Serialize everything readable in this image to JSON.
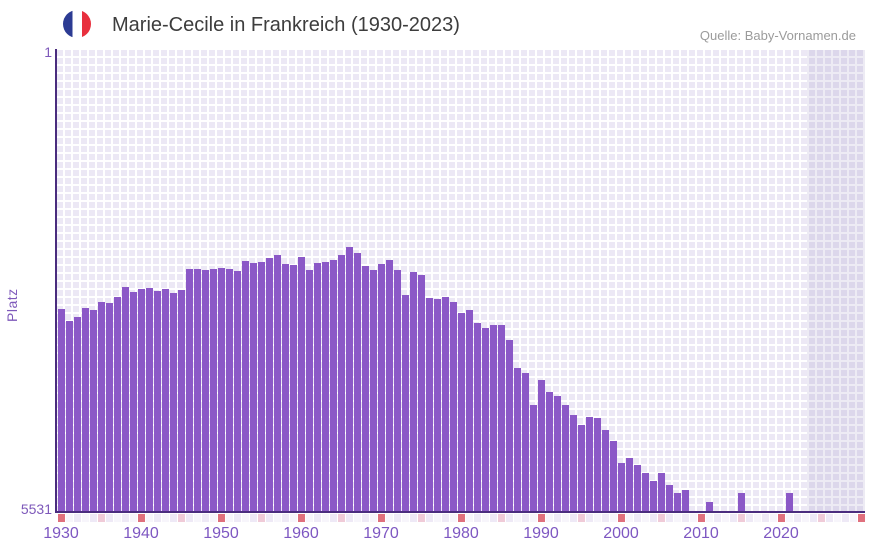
{
  "header": {
    "title": "Marie-Cecile in Frankreich (1930-2023)",
    "source": "Quelle: Baby-Vornamen.de",
    "flag_icon": "france-flag-icon"
  },
  "axes": {
    "ylabel": "Platz",
    "y_top_label": "1",
    "y_bottom_label": "5531"
  },
  "chart_data": {
    "type": "bar",
    "title": "Marie-Cecile in Frankreich (1930-2023)",
    "xlabel": "",
    "ylabel": "Platz",
    "legend_position": "none",
    "grid": true,
    "y_axis": {
      "min": 1,
      "max": 5531,
      "inverted": true,
      "tick_labels": [
        "1",
        "5531"
      ]
    },
    "x_axis": {
      "range": [
        1930,
        2030
      ],
      "tick_years": [
        1930,
        1940,
        1950,
        1960,
        1970,
        1980,
        1990,
        2000,
        2010,
        2020
      ],
      "decade_marker_note": "red squares under every decade year, pink squares under every half-decade year, strip runs 1930-2030",
      "future_band_years": [
        2024,
        2030
      ]
    },
    "colors": {
      "bar": "#8b58c7",
      "axis_line": "#4a2c7e",
      "tick_text": "#7e57c2",
      "title_text": "#3d3d3d",
      "source_text": "#9b9b9b",
      "decade_marker": "#e0707d",
      "halfdecade_marker": "#f0cbd8",
      "strip_even": "#eee9f6",
      "strip_odd": "#f7f5fb",
      "plot_cell": "#ece8f5",
      "future_band": "rgba(116,98,170,0.13)"
    },
    "years": [
      1930,
      1931,
      1932,
      1933,
      1934,
      1935,
      1936,
      1937,
      1938,
      1939,
      1940,
      1941,
      1942,
      1943,
      1944,
      1945,
      1946,
      1947,
      1948,
      1949,
      1950,
      1951,
      1952,
      1953,
      1954,
      1955,
      1956,
      1957,
      1958,
      1959,
      1960,
      1961,
      1962,
      1963,
      1964,
      1965,
      1966,
      1967,
      1968,
      1969,
      1970,
      1971,
      1972,
      1973,
      1974,
      1975,
      1976,
      1977,
      1978,
      1979,
      1980,
      1981,
      1982,
      1983,
      1984,
      1985,
      1986,
      1987,
      1988,
      1989,
      1990,
      1991,
      1992,
      1993,
      1994,
      1995,
      1996,
      1997,
      1998,
      1999,
      2000,
      2001,
      2002,
      2003,
      2004,
      2005,
      2006,
      2007,
      2008,
      2009,
      2010,
      2011,
      2012,
      2013,
      2014,
      2015,
      2016,
      2017,
      2018,
      2019,
      2020,
      2021,
      2022,
      2023
    ],
    "ranks": [
      3097,
      3242,
      3193,
      3085,
      3109,
      3013,
      3025,
      2953,
      2832,
      2892,
      2856,
      2844,
      2880,
      2856,
      2904,
      2868,
      2615,
      2615,
      2627,
      2615,
      2603,
      2615,
      2639,
      2519,
      2543,
      2531,
      2483,
      2447,
      2555,
      2567,
      2471,
      2627,
      2543,
      2531,
      2507,
      2447,
      2350,
      2422,
      2579,
      2627,
      2555,
      2507,
      2627,
      2929,
      2651,
      2688,
      2965,
      2977,
      2953,
      3013,
      3145,
      3109,
      3266,
      3326,
      3290,
      3290,
      3471,
      3808,
      3868,
      4254,
      3953,
      4097,
      4145,
      4254,
      4374,
      4495,
      4398,
      4410,
      4555,
      4687,
      4952,
      4892,
      4976,
      5073,
      5169,
      5073,
      5217,
      5314,
      5277,
      null,
      null,
      5422,
      null,
      null,
      null,
      5314,
      null,
      null,
      null,
      null,
      null,
      5314,
      null,
      null
    ]
  }
}
